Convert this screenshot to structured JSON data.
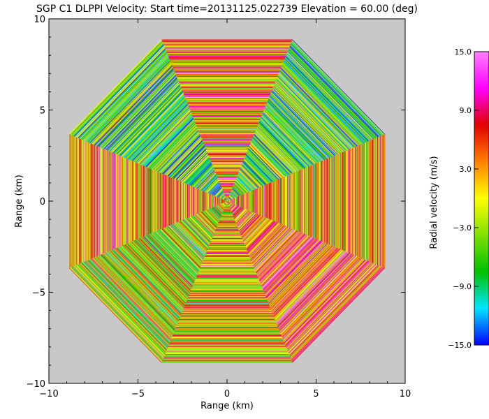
{
  "chart_data": {
    "type": "heatmap",
    "title": "SGP C1 DLPPI Velocity: Start time=20131125.022739 Elevation = 60.00 (deg)",
    "xlabel": "Range (km)",
    "ylabel": "Range (km)",
    "xlim": [
      -10,
      10
    ],
    "ylim": [
      -10,
      10
    ],
    "x_ticks": [
      "−10",
      "−5",
      "0",
      "5",
      "10"
    ],
    "y_ticks": [
      "−10",
      "−5",
      "0",
      "5",
      "10"
    ],
    "scan": {
      "azimuth_step_deg": 45,
      "azimuth_count": 8,
      "first_azimuth_deg": 22.5,
      "max_range_km": 9.6,
      "gates_per_ray": 320
    },
    "colorbar": {
      "label": "Radial velocity (m/s)",
      "vmin": -15,
      "vmax": 15,
      "ticks": [
        "15.0",
        "9.0",
        "3.0",
        "−3.0",
        "−9.0",
        "−15.0"
      ],
      "tick_values": [
        15,
        9,
        3,
        -3,
        -9,
        -15
      ],
      "colors": [
        "#0000ff",
        "#00e5ff",
        "#00c000",
        "#80e000",
        "#ffff00",
        "#ff8000",
        "#e00000",
        "#ff00ff",
        "#ff80ff"
      ]
    },
    "background_color": "#c8c8c8"
  }
}
